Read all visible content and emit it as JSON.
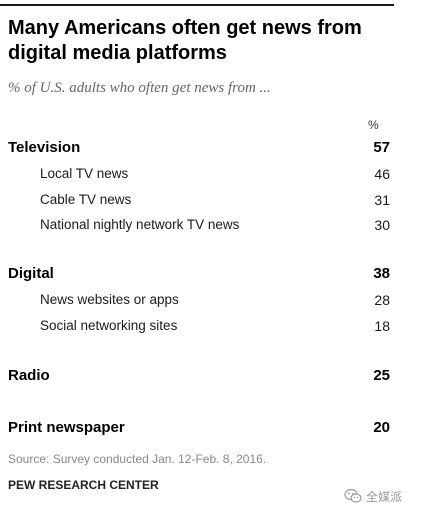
{
  "title": "Many Americans often get news from digital media platforms",
  "subtitle": "% of U.S. adults who often get news from ...",
  "percent_header": "%",
  "chart_data": {
    "type": "table",
    "title": "Many Americans often get news from digital media platforms",
    "subtitle": "% of U.S. adults who often get news from ...",
    "unit": "%",
    "groups": [
      {
        "label": "Television",
        "value": 57,
        "items": [
          {
            "label": "Local TV news",
            "value": 46
          },
          {
            "label": "Cable TV news",
            "value": 31
          },
          {
            "label": "National nightly network TV news",
            "value": 30
          }
        ]
      },
      {
        "label": "Digital",
        "value": 38,
        "items": [
          {
            "label": "News websites or apps",
            "value": 28
          },
          {
            "label": "Social networking sites",
            "value": 18
          }
        ]
      },
      {
        "label": "Radio",
        "value": 25,
        "items": []
      },
      {
        "label": "Print newspaper",
        "value": 20,
        "items": []
      }
    ]
  },
  "source": "Source: Survey conducted Jan. 12-Feb. 8, 2016.",
  "organization": "PEW RESEARCH CENTER",
  "watermark": {
    "text": "全媒派",
    "icon": "wechat-icon"
  },
  "colors": {
    "title": "#000000",
    "subtitle": "#666666",
    "source": "#888888",
    "rule": "#1a1a1a",
    "watermark": "#9a9a9a"
  }
}
